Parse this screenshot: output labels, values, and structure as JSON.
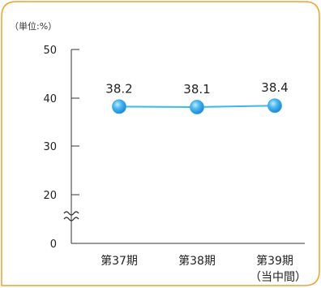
{
  "colors": {
    "frame_border": "#f0a030",
    "axis": "#333333",
    "line": "#3db8e8",
    "marker": "#3aa9e6"
  },
  "chart_data": {
    "type": "line",
    "unit_label": "（単位:%）",
    "categories": [
      "第37期",
      "第38期",
      "第39期"
    ],
    "category_sublabels": [
      "",
      "",
      "（当中間）"
    ],
    "values": [
      38.2,
      38.1,
      38.4
    ],
    "value_labels": [
      "38.2",
      "38.1",
      "38.4"
    ],
    "y_ticks": [
      0,
      20,
      30,
      40,
      50
    ],
    "y_tick_labels": [
      "0",
      "20",
      "30",
      "40",
      "50"
    ],
    "ylim": [
      15,
      50
    ],
    "axis_break": true,
    "axis_break_between": [
      0,
      20
    ],
    "grid": false
  }
}
